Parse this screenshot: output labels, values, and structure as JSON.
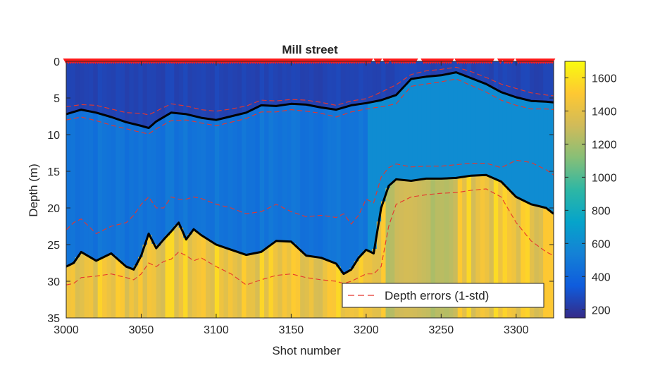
{
  "chart_data": {
    "type": "heatmap",
    "title": "Mill street",
    "xlabel": "Shot number",
    "ylabel": "Depth (m)",
    "xlim": [
      3000,
      3325
    ],
    "ylim": [
      0,
      35
    ],
    "y_reversed": true,
    "x_ticks": [
      3000,
      3050,
      3100,
      3150,
      3200,
      3250,
      3300
    ],
    "y_ticks": [
      0,
      5,
      10,
      15,
      20,
      25,
      30,
      35
    ],
    "colorbar": {
      "colormap": "parula",
      "range": [
        150,
        1700
      ],
      "ticks": [
        200,
        400,
        600,
        800,
        1000,
        1200,
        1400,
        1600
      ]
    },
    "velocity_layers": {
      "layer1": 250,
      "layer2": 470,
      "layer3": 1450
    },
    "series": [
      {
        "name": "",
        "role": "interface-1",
        "x": [
          3000,
          3010,
          3020,
          3030,
          3040,
          3050,
          3055,
          3060,
          3070,
          3080,
          3090,
          3100,
          3110,
          3120,
          3130,
          3140,
          3150,
          3160,
          3170,
          3180,
          3190,
          3200,
          3210,
          3220,
          3230,
          3240,
          3250,
          3260,
          3270,
          3280,
          3290,
          3300,
          3310,
          3320,
          3325
        ],
        "y": [
          7.2,
          6.6,
          7.0,
          7.6,
          8.3,
          8.8,
          9.1,
          8.2,
          7.0,
          7.2,
          7.7,
          8.0,
          7.5,
          7.0,
          6.0,
          6.1,
          5.8,
          5.9,
          6.3,
          6.6,
          6.0,
          5.7,
          5.3,
          4.6,
          2.4,
          2.1,
          1.9,
          1.5,
          2.3,
          3.1,
          4.2,
          4.9,
          5.4,
          5.5,
          5.6
        ]
      },
      {
        "name": "",
        "role": "interface-2",
        "x": [
          3000,
          3005,
          3010,
          3020,
          3030,
          3040,
          3045,
          3050,
          3055,
          3060,
          3065,
          3070,
          3075,
          3080,
          3085,
          3090,
          3100,
          3110,
          3120,
          3130,
          3140,
          3150,
          3160,
          3170,
          3180,
          3185,
          3190,
          3195,
          3200,
          3205,
          3210,
          3215,
          3220,
          3230,
          3240,
          3250,
          3260,
          3270,
          3280,
          3290,
          3300,
          3310,
          3320,
          3325
        ],
        "y": [
          28.0,
          27.5,
          26.0,
          27.2,
          26.2,
          28.0,
          28.4,
          26.5,
          23.5,
          25.5,
          24.3,
          23.2,
          22.0,
          24.3,
          22.9,
          23.7,
          25.0,
          25.7,
          26.4,
          26.0,
          24.5,
          24.6,
          26.5,
          26.8,
          27.6,
          29.0,
          28.4,
          26.8,
          25.7,
          26.2,
          20.0,
          17.0,
          16.1,
          16.3,
          16.0,
          16.0,
          15.9,
          15.6,
          15.5,
          16.4,
          18.5,
          19.5,
          20.0,
          20.8
        ]
      }
    ],
    "error_bounds": {
      "legend": "Depth errors (1-std)",
      "interface1_upper": [
        6.2,
        5.9,
        6.0,
        6.5,
        7.0,
        7.1,
        7.3,
        6.8,
        5.8,
        6.1,
        6.6,
        6.8,
        6.5,
        6.1,
        5.3,
        5.4,
        5.2,
        5.3,
        5.6,
        6.0,
        5.4,
        5.1,
        4.2,
        3.2,
        1.8,
        1.3,
        1.1,
        0.8,
        1.4,
        2.2,
        3.1,
        3.7,
        4.3,
        4.6,
        4.7
      ],
      "interface1_lower": [
        8.0,
        7.6,
        8.1,
        8.7,
        9.2,
        9.7,
        9.9,
        9.2,
        8.1,
        8.0,
        8.4,
        8.8,
        8.3,
        7.8,
        6.9,
        6.9,
        6.6,
        6.8,
        7.1,
        7.6,
        6.9,
        6.5,
        6.2,
        5.8,
        3.4,
        3.1,
        2.8,
        2.4,
        3.3,
        4.2,
        5.3,
        6.0,
        6.5,
        6.5,
        6.6
      ],
      "interface2_upper": [
        23.0,
        22.0,
        21.5,
        23.5,
        22.5,
        22.0,
        21.0,
        19.5,
        18.5,
        20.0,
        20.0,
        18.5,
        18.8,
        18.8,
        18.5,
        18.7,
        19.5,
        20.0,
        20.8,
        20.5,
        19.5,
        20.5,
        21.2,
        21.0,
        21.3,
        20.8,
        22.2,
        21.0,
        18.8,
        19.3,
        15.8,
        14.5,
        14.0,
        14.4,
        14.3,
        14.3,
        14.1,
        13.9,
        13.9,
        14.5,
        13.5,
        13.8,
        14.8,
        15.5
      ],
      "interface2_lower": [
        30.5,
        30.3,
        29.5,
        29.3,
        29.0,
        29.5,
        29.8,
        29.0,
        27.5,
        28.0,
        27.3,
        27.0,
        26.0,
        26.5,
        27.2,
        26.8,
        28.0,
        29.0,
        30.5,
        29.8,
        29.2,
        29.0,
        29.5,
        29.8,
        30.0,
        30.3,
        30.0,
        29.5,
        29.0,
        29.0,
        28.0,
        22.5,
        19.5,
        18.5,
        18.2,
        18.0,
        17.9,
        17.6,
        17.4,
        18.5,
        22.0,
        24.5,
        26.0,
        26.5
      ]
    },
    "legend": {
      "label": "Depth errors (1-std)",
      "position": "bottom-right"
    },
    "receivers": {
      "marker": "triangle",
      "color": "#ff1a1a",
      "depth": 0
    }
  }
}
